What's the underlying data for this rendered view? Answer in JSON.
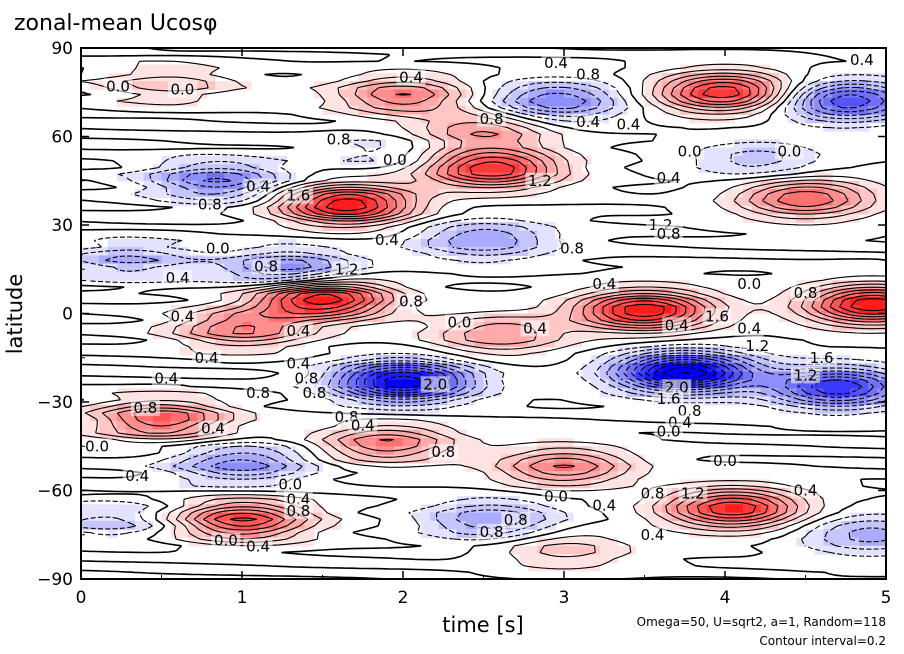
{
  "chart_data": {
    "type": "heatmap",
    "title": "zonal-mean Ucosφ",
    "xlabel": "time [s]",
    "ylabel": "latitude",
    "xlim": [
      0,
      5
    ],
    "ylim": [
      -90,
      90
    ],
    "x_ticks": [
      "0",
      "1",
      "2",
      "3",
      "4",
      "5"
    ],
    "y_ticks": [
      "90",
      "60",
      "30",
      "0",
      "−30",
      "−60",
      "−90"
    ],
    "x_tick_values": [
      0,
      1,
      2,
      3,
      4,
      5
    ],
    "y_tick_values": [
      90,
      60,
      30,
      0,
      -30,
      -60,
      -90
    ],
    "contour_interval": 0.2,
    "colors": {
      "positive": "#ff0000",
      "negative": "#0000ff",
      "zero": "#ffffff"
    },
    "features": [
      {
        "t": 0.55,
        "lat": 78,
        "v": 0.5
      },
      {
        "t": 2.0,
        "lat": 74,
        "v": 1.0
      },
      {
        "t": 2.5,
        "lat": 62,
        "v": 0.8
      },
      {
        "t": 2.95,
        "lat": 72,
        "v": -1.0
      },
      {
        "t": 4.0,
        "lat": 75,
        "v": 1.6
      },
      {
        "t": 4.75,
        "lat": 72,
        "v": -1.4
      },
      {
        "t": 0.85,
        "lat": 45,
        "v": -1.0
      },
      {
        "t": 1.65,
        "lat": 37,
        "v": 1.8
      },
      {
        "t": 2.55,
        "lat": 49,
        "v": 1.6
      },
      {
        "t": 4.5,
        "lat": 39,
        "v": 1.2
      },
      {
        "t": 2.5,
        "lat": 25,
        "v": -0.8
      },
      {
        "t": 1.3,
        "lat": 15,
        "v": -1.0
      },
      {
        "t": 0.3,
        "lat": 18,
        "v": -0.6
      },
      {
        "t": 1.5,
        "lat": 5,
        "v": 1.8
      },
      {
        "t": 3.5,
        "lat": 1,
        "v": 1.8
      },
      {
        "t": 4.92,
        "lat": 3,
        "v": 1.8
      },
      {
        "t": 1.0,
        "lat": -5,
        "v": 1.0
      },
      {
        "t": 2.6,
        "lat": -7,
        "v": 0.8
      },
      {
        "t": 2.0,
        "lat": -23,
        "v": -2.0
      },
      {
        "t": 3.75,
        "lat": -20,
        "v": -2.2
      },
      {
        "t": 4.7,
        "lat": -25,
        "v": -1.6
      },
      {
        "t": 0.5,
        "lat": -36,
        "v": 1.2
      },
      {
        "t": 1.9,
        "lat": -44,
        "v": 1.0
      },
      {
        "t": 3.0,
        "lat": -52,
        "v": 1.0
      },
      {
        "t": 1.0,
        "lat": -51,
        "v": -0.9
      },
      {
        "t": 1.0,
        "lat": -70,
        "v": 1.4
      },
      {
        "t": 4.05,
        "lat": -66,
        "v": 1.6
      },
      {
        "t": 2.55,
        "lat": -70,
        "v": -0.8
      },
      {
        "t": 4.9,
        "lat": -75,
        "v": -0.7
      },
      {
        "t": 0.2,
        "lat": -70,
        "v": -0.5
      },
      {
        "t": 3.0,
        "lat": -80,
        "v": 0.5
      },
      {
        "t": 4.2,
        "lat": 52,
        "v": -0.5
      },
      {
        "t": 1.9,
        "lat": 55,
        "v": -0.3
      }
    ],
    "contour_labels": [
      {
        "text": "0.4",
        "t": 2.05,
        "lat": 80
      },
      {
        "text": "0.4",
        "t": 2.95,
        "lat": 85
      },
      {
        "text": "0.8",
        "t": 3.15,
        "lat": 81
      },
      {
        "text": "0.4",
        "t": 4.85,
        "lat": 86
      },
      {
        "text": "0.0",
        "t": 0.23,
        "lat": 77
      },
      {
        "text": "0.0",
        "t": 0.63,
        "lat": 76
      },
      {
        "text": "0.8",
        "t": 2.55,
        "lat": 66
      },
      {
        "text": "0.8",
        "t": 1.6,
        "lat": 59
      },
      {
        "text": "0.4",
        "t": 3.15,
        "lat": 65
      },
      {
        "text": "0.4",
        "t": 3.4,
        "lat": 64
      },
      {
        "text": "0.0",
        "t": 3.78,
        "lat": 55
      },
      {
        "text": "0.0",
        "t": 4.4,
        "lat": 55
      },
      {
        "text": "0.0",
        "t": 1.95,
        "lat": 52
      },
      {
        "text": "0.4",
        "t": 3.65,
        "lat": 46
      },
      {
        "text": "1.2",
        "t": 2.85,
        "lat": 45
      },
      {
        "text": "1.6",
        "t": 1.35,
        "lat": 40
      },
      {
        "text": "0.4",
        "t": 1.1,
        "lat": 43
      },
      {
        "text": "0.8",
        "t": 0.8,
        "lat": 37
      },
      {
        "text": "0.4",
        "t": 1.9,
        "lat": 25
      },
      {
        "text": "1.2",
        "t": 3.6,
        "lat": 30
      },
      {
        "text": "0.8",
        "t": 3.65,
        "lat": 27
      },
      {
        "text": "0.8",
        "t": 3.05,
        "lat": 22
      },
      {
        "text": "0.0",
        "t": 0.85,
        "lat": 22
      },
      {
        "text": "0.8",
        "t": 1.15,
        "lat": 16
      },
      {
        "text": "1.2",
        "t": 1.65,
        "lat": 15
      },
      {
        "text": "0.4",
        "t": 0.6,
        "lat": 12
      },
      {
        "text": "0.4",
        "t": 3.25,
        "lat": 10
      },
      {
        "text": "0.0",
        "t": 4.15,
        "lat": 10
      },
      {
        "text": "0.8",
        "t": 4.5,
        "lat": 7
      },
      {
        "text": "0.8",
        "t": 2.05,
        "lat": 4
      },
      {
        "text": "0.4",
        "t": 0.63,
        "lat": -1
      },
      {
        "text": "0.0",
        "t": 2.35,
        "lat": -3
      },
      {
        "text": "0.4",
        "t": 2.82,
        "lat": -5
      },
      {
        "text": "0.4",
        "t": 1.35,
        "lat": -6
      },
      {
        "text": "1.6",
        "t": 3.95,
        "lat": -1
      },
      {
        "text": "0.4",
        "t": 3.7,
        "lat": -4
      },
      {
        "text": "0.4",
        "t": 4.15,
        "lat": -5
      },
      {
        "text": "1.2",
        "t": 4.2,
        "lat": -11
      },
      {
        "text": "0.4",
        "t": 0.78,
        "lat": -15
      },
      {
        "text": "0.4",
        "t": 0.53,
        "lat": -22
      },
      {
        "text": "0.4",
        "t": 1.35,
        "lat": -17
      },
      {
        "text": "0.8",
        "t": 1.4,
        "lat": -22
      },
      {
        "text": "2.0",
        "t": 2.2,
        "lat": -24
      },
      {
        "text": "0.8",
        "t": 1.1,
        "lat": -27
      },
      {
        "text": "0.8",
        "t": 1.45,
        "lat": -27
      },
      {
        "text": "1.6",
        "t": 4.6,
        "lat": -15
      },
      {
        "text": "1.2",
        "t": 4.5,
        "lat": -21
      },
      {
        "text": "2.0",
        "t": 3.7,
        "lat": -25
      },
      {
        "text": "1.6",
        "t": 3.65,
        "lat": -29
      },
      {
        "text": "0.8",
        "t": 3.78,
        "lat": -33
      },
      {
        "text": "0.4",
        "t": 3.72,
        "lat": -37
      },
      {
        "text": "0.0",
        "t": 3.65,
        "lat": -40
      },
      {
        "text": "0.8",
        "t": 0.4,
        "lat": -32
      },
      {
        "text": "0.8",
        "t": 1.65,
        "lat": -35
      },
      {
        "text": "0.4",
        "t": 0.82,
        "lat": -39
      },
      {
        "text": "0.4",
        "t": 1.75,
        "lat": -38
      },
      {
        "text": "0.0",
        "t": 0.1,
        "lat": -45
      },
      {
        "text": "0.8",
        "t": 2.25,
        "lat": -47
      },
      {
        "text": "0.0",
        "t": 4.0,
        "lat": -50
      },
      {
        "text": "0.4",
        "t": 0.35,
        "lat": -55
      },
      {
        "text": "0.0",
        "t": 1.3,
        "lat": -58
      },
      {
        "text": "0.4",
        "t": 1.35,
        "lat": -63
      },
      {
        "text": "0.8",
        "t": 1.35,
        "lat": -67
      },
      {
        "text": "0.0",
        "t": 2.95,
        "lat": -62
      },
      {
        "text": "0.4",
        "t": 3.25,
        "lat": -65
      },
      {
        "text": "0.8",
        "t": 3.55,
        "lat": -61
      },
      {
        "text": "1.2",
        "t": 3.8,
        "lat": -61
      },
      {
        "text": "0.4",
        "t": 4.5,
        "lat": -60
      },
      {
        "text": "0.8",
        "t": 2.7,
        "lat": -70
      },
      {
        "text": "0.8",
        "t": 2.55,
        "lat": -74
      },
      {
        "text": "0.0",
        "t": 0.9,
        "lat": -77
      },
      {
        "text": "0.4",
        "t": 1.1,
        "lat": -79
      },
      {
        "text": "0.4",
        "t": 3.55,
        "lat": -75
      }
    ],
    "annotations": {
      "params": "Omega=50, U=sqrt2, a=1, Random=118",
      "contour_interval_label": "Contour interval=0.2"
    }
  }
}
